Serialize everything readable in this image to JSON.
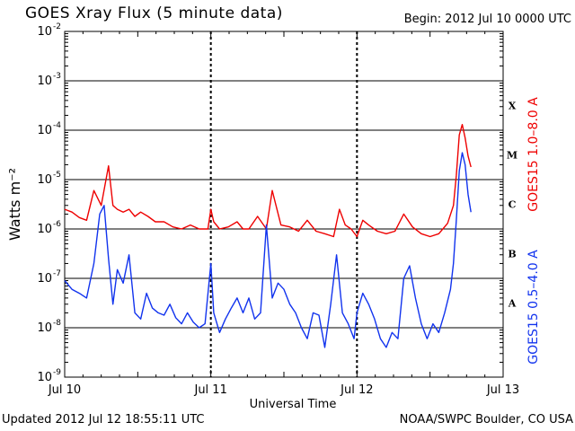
{
  "header": {
    "title": "GOES Xray Flux (5 minute data)",
    "begin": "Begin:  2012 Jul 10 0000 UTC"
  },
  "footer": {
    "updated": "Updated 2012 Jul 12 18:55:11 UTC",
    "credit": "NOAA/SWPC Boulder, CO USA"
  },
  "colors": {
    "long": "#ee0000",
    "short": "#1133ee",
    "grid": "#000000"
  },
  "chart_data": {
    "type": "line",
    "title": "GOES Xray Flux (5 minute data)",
    "xlabel": "Universal Time",
    "ylabel": "Watts m⁻²",
    "y_scale": "log",
    "ylim": [
      1e-09,
      0.01
    ],
    "xlim_days": [
      0,
      3
    ],
    "x_ticks": [
      {
        "day": 0,
        "label": "Jul 10"
      },
      {
        "day": 1,
        "label": "Jul 11"
      },
      {
        "day": 2,
        "label": "Jul 12"
      },
      {
        "day": 3,
        "label": "Jul 13"
      }
    ],
    "y_ticks": [
      {
        "exp": -2,
        "label": "10",
        "sup": "-2"
      },
      {
        "exp": -3,
        "label": "10",
        "sup": "-3"
      },
      {
        "exp": -4,
        "label": "10",
        "sup": "-4"
      },
      {
        "exp": -5,
        "label": "10",
        "sup": "-5"
      },
      {
        "exp": -6,
        "label": "10",
        "sup": "-6"
      },
      {
        "exp": -7,
        "label": "10",
        "sup": "-7"
      },
      {
        "exp": -8,
        "label": "10",
        "sup": "-8"
      },
      {
        "exp": -9,
        "label": "10",
        "sup": "-9"
      }
    ],
    "flare_classes": [
      {
        "label": "X",
        "exp": -3.5
      },
      {
        "label": "M",
        "exp": -4.5
      },
      {
        "label": "C",
        "exp": -5.5
      },
      {
        "label": "B",
        "exp": -6.5
      },
      {
        "label": "A",
        "exp": -7.5
      }
    ],
    "gridlines": true,
    "series": [
      {
        "name": "GOES15 1.0–8.0 A",
        "color": "#ee0000",
        "day": [
          0.0,
          0.05,
          0.1,
          0.15,
          0.2,
          0.25,
          0.3,
          0.33,
          0.36,
          0.4,
          0.44,
          0.48,
          0.52,
          0.57,
          0.62,
          0.68,
          0.74,
          0.8,
          0.86,
          0.92,
          0.98,
          1.0,
          1.02,
          1.06,
          1.12,
          1.18,
          1.22,
          1.26,
          1.32,
          1.38,
          1.42,
          1.48,
          1.54,
          1.6,
          1.66,
          1.72,
          1.78,
          1.84,
          1.88,
          1.92,
          1.96,
          2.0,
          2.04,
          2.08,
          2.14,
          2.2,
          2.26,
          2.32,
          2.38,
          2.44,
          2.5,
          2.56,
          2.62,
          2.66,
          2.68,
          2.7,
          2.72,
          2.74,
          2.76,
          2.78
        ],
        "flux": [
          2.5e-06,
          2.2e-06,
          1.7e-06,
          1.5e-06,
          6e-06,
          3e-06,
          1.9e-05,
          3e-06,
          2.5e-06,
          2.2e-06,
          2.5e-06,
          1.8e-06,
          2.2e-06,
          1.8e-06,
          1.4e-06,
          1.4e-06,
          1.1e-06,
          1e-06,
          1.2e-06,
          1e-06,
          1e-06,
          2.5e-06,
          1.4e-06,
          1e-06,
          1.1e-06,
          1.4e-06,
          1e-06,
          1e-06,
          1.8e-06,
          1e-06,
          6e-06,
          1.2e-06,
          1.1e-06,
          9e-07,
          1.5e-06,
          9e-07,
          8e-07,
          7e-07,
          2.5e-06,
          1.2e-06,
          1e-06,
          7e-07,
          1.5e-06,
          1.2e-06,
          9e-07,
          8e-07,
          9e-07,
          2e-06,
          1.1e-06,
          8e-07,
          7e-07,
          8e-07,
          1.3e-06,
          3e-06,
          1.2e-05,
          8e-05,
          0.00013,
          7e-05,
          3e-05,
          1.8e-05
        ]
      },
      {
        "name": "GOES15 0.5–4.0 A",
        "color": "#1133ee",
        "day": [
          0.0,
          0.05,
          0.1,
          0.15,
          0.2,
          0.24,
          0.27,
          0.3,
          0.33,
          0.36,
          0.4,
          0.44,
          0.48,
          0.52,
          0.56,
          0.6,
          0.64,
          0.68,
          0.72,
          0.76,
          0.8,
          0.84,
          0.88,
          0.92,
          0.96,
          1.0,
          1.02,
          1.06,
          1.1,
          1.14,
          1.18,
          1.22,
          1.26,
          1.3,
          1.34,
          1.38,
          1.42,
          1.46,
          1.5,
          1.54,
          1.58,
          1.62,
          1.66,
          1.7,
          1.74,
          1.78,
          1.82,
          1.86,
          1.9,
          1.94,
          1.98,
          2.0,
          2.04,
          2.08,
          2.12,
          2.16,
          2.2,
          2.24,
          2.28,
          2.32,
          2.36,
          2.4,
          2.44,
          2.48,
          2.52,
          2.56,
          2.6,
          2.64,
          2.66,
          2.68,
          2.7,
          2.72,
          2.74,
          2.76,
          2.78
        ],
        "flux": [
          9e-08,
          6e-08,
          5e-08,
          4e-08,
          2e-07,
          2e-06,
          3e-06,
          2.5e-07,
          3e-08,
          1.5e-07,
          8e-08,
          3e-07,
          2e-08,
          1.5e-08,
          5e-08,
          2.5e-08,
          2e-08,
          1.8e-08,
          3e-08,
          1.6e-08,
          1.2e-08,
          2e-08,
          1.3e-08,
          1e-08,
          1.2e-08,
          2e-07,
          2e-08,
          8e-09,
          1.5e-08,
          2.5e-08,
          4e-08,
          2e-08,
          4e-08,
          1.5e-08,
          2e-08,
          1.2e-06,
          4e-08,
          8e-08,
          6e-08,
          3e-08,
          2e-08,
          1e-08,
          6e-09,
          2e-08,
          1.8e-08,
          4e-09,
          3e-08,
          3e-07,
          2e-08,
          1.2e-08,
          6e-09,
          2e-08,
          5e-08,
          3e-08,
          1.5e-08,
          6e-09,
          4e-09,
          8e-09,
          6e-09,
          1e-07,
          1.8e-07,
          4e-08,
          1.2e-08,
          6e-09,
          1.2e-08,
          8e-09,
          2e-08,
          6e-08,
          2e-07,
          1.5e-06,
          1.5e-05,
          3.5e-05,
          2e-05,
          5e-06,
          2.2e-06
        ]
      }
    ]
  }
}
